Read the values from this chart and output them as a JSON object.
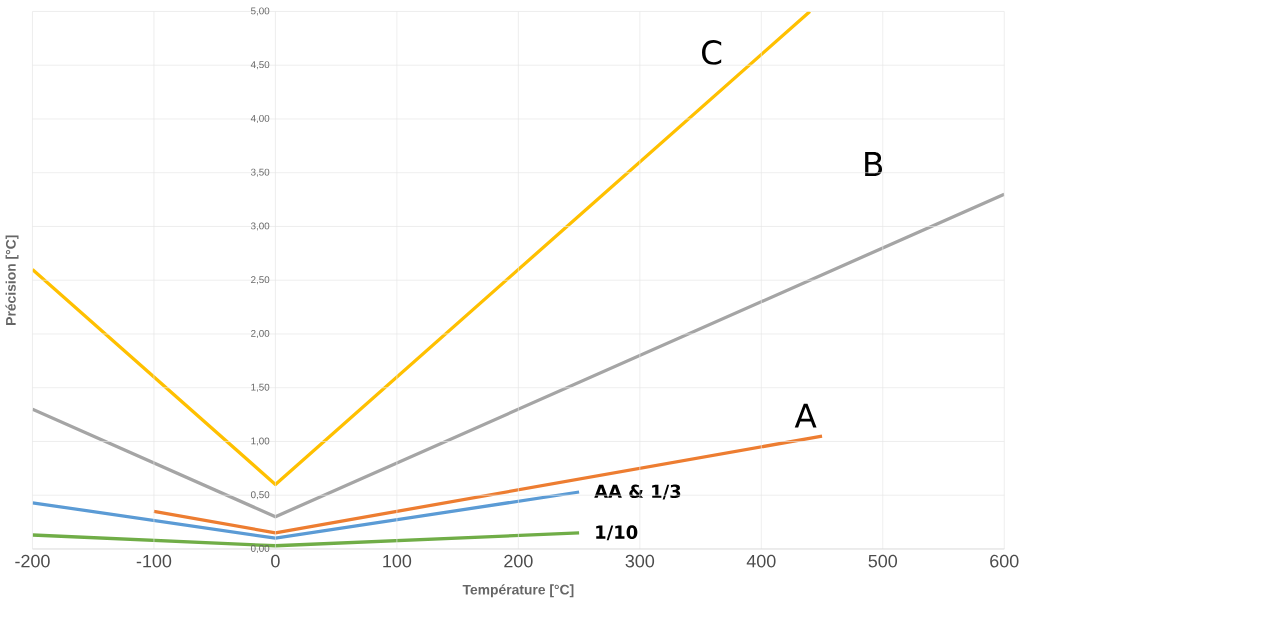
{
  "chart_data": {
    "type": "line",
    "xlabel": "Température [°C]",
    "ylabel": "Précision [°C]",
    "xlim": [
      -200,
      600
    ],
    "ylim": [
      0,
      5
    ],
    "xticks": [
      -200,
      -100,
      0,
      100,
      200,
      300,
      400,
      500,
      600
    ],
    "yticks": [
      {
        "value": 0,
        "label": "0,00"
      },
      {
        "value": 0.5,
        "label": "0,50"
      },
      {
        "value": 1,
        "label": "1,00"
      },
      {
        "value": 1.5,
        "label": "1,50"
      },
      {
        "value": 2,
        "label": "2,00"
      },
      {
        "value": 2.5,
        "label": "2,50"
      },
      {
        "value": 3,
        "label": "3,00"
      },
      {
        "value": 3.5,
        "label": "3,50"
      },
      {
        "value": 4,
        "label": "4,00"
      },
      {
        "value": 4.5,
        "label": "4,50"
      },
      {
        "value": 5,
        "label": "5,00"
      }
    ],
    "grid": true,
    "series": [
      {
        "name": "C",
        "color": "#ffc000",
        "x": [
          -200,
          0,
          440
        ],
        "values": [
          2.6,
          0.6,
          5.0
        ]
      },
      {
        "name": "B",
        "color": "#a5a5a5",
        "x": [
          -200,
          0,
          600
        ],
        "values": [
          1.3,
          0.3,
          3.3
        ]
      },
      {
        "name": "A",
        "color": "#ed7d31",
        "x": [
          -100,
          0,
          450
        ],
        "values": [
          0.35,
          0.15,
          1.05
        ]
      },
      {
        "name": "AA & 1/3",
        "color": "#5b9bd5",
        "x": [
          -200,
          0,
          250
        ],
        "values": [
          0.43,
          0.1,
          0.53
        ]
      },
      {
        "name": "1/10",
        "color": "#70ad47",
        "x": [
          -200,
          0,
          250
        ],
        "values": [
          0.13,
          0.03,
          0.15
        ]
      }
    ]
  }
}
